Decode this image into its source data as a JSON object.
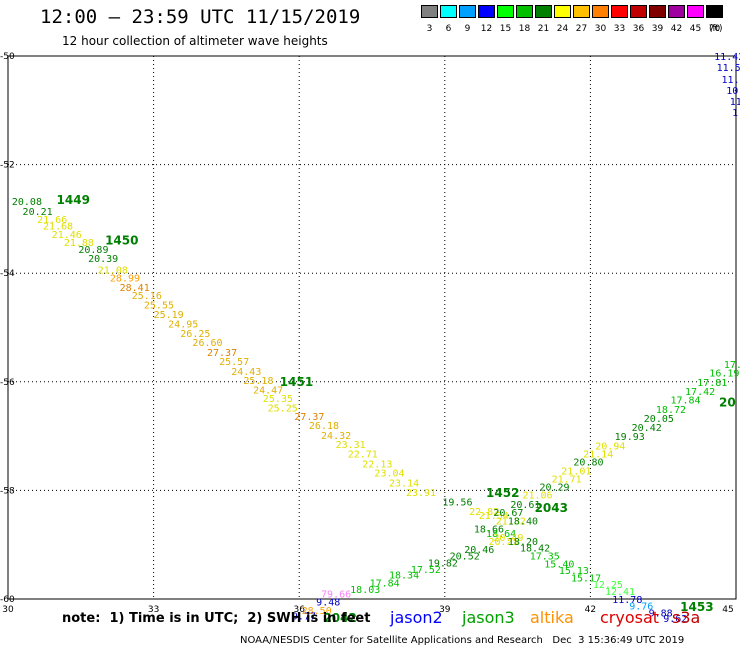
{
  "header": {
    "title": "12:00 – 23:59 UTC 11/15/2019",
    "subtitle": "12 hour collection of altimeter wave heights"
  },
  "legend": {
    "unit": "(ft)",
    "scale": [
      {
        "label": "3",
        "color": "#808080"
      },
      {
        "label": "6",
        "color": "#00ffff"
      },
      {
        "label": "9",
        "color": "#00a0ff"
      },
      {
        "label": "12",
        "color": "#0000ff"
      },
      {
        "label": "15",
        "color": "#00ff00"
      },
      {
        "label": "18",
        "color": "#00c000"
      },
      {
        "label": "21",
        "color": "#008000"
      },
      {
        "label": "24",
        "color": "#ffff00"
      },
      {
        "label": "27",
        "color": "#ffc000"
      },
      {
        "label": "30",
        "color": "#ff8000"
      },
      {
        "label": "33",
        "color": "#ff0000"
      },
      {
        "label": "36",
        "color": "#c00000"
      },
      {
        "label": "39",
        "color": "#800000"
      },
      {
        "label": "42",
        "color": "#a000a0"
      },
      {
        "label": "45",
        "color": "#ff00ff"
      },
      {
        "label": "70",
        "color": "#000000"
      }
    ]
  },
  "map": {
    "y_ticks": [
      "-50",
      "-52",
      "-54",
      "-56",
      "-58",
      "-60"
    ],
    "x_ticks": [
      "30",
      "33",
      "36",
      "39",
      "42",
      "45"
    ],
    "tracks": [
      {
        "color_key": "jason3",
        "points": [
          {
            "lon": 30.08,
            "lat": -52.67,
            "v": "20.08",
            "c": "#008000"
          },
          {
            "lon": 30.3,
            "lat": -52.8,
            "v": "20.21",
            "c": "#008000"
          },
          {
            "lon": 31.4,
            "lat": -53.45,
            "v": "20.89",
            "c": "#008000"
          },
          {
            "lon": 31.6,
            "lat": -53.62,
            "v": "20.39",
            "c": "#008000"
          },
          {
            "lon": 30.6,
            "lat": -52.95,
            "v": "21.66",
            "c": "#00c000"
          },
          {
            "lon": 30.7,
            "lat": -53.05,
            "v": "21.68",
            "c": "#00c000"
          },
          {
            "lon": 30.9,
            "lat": -53.25,
            "v": "21.46",
            "c": "#00c000"
          },
          {
            "lon": 31.1,
            "lat": -53.38,
            "v": "21.88",
            "c": "#00c000"
          }
        ]
      }
    ],
    "labels": [
      {
        "lon": 30.08,
        "lat": -52.67,
        "text": "20.08",
        "color": "#008000"
      },
      {
        "lon": 30.3,
        "lat": -52.85,
        "text": "20.21",
        "color": "#008000"
      },
      {
        "lon": 30.6,
        "lat": -53.0,
        "text": "21.66",
        "color": "#e0e000"
      },
      {
        "lon": 30.72,
        "lat": -53.12,
        "text": "21.68",
        "color": "#e0e000"
      },
      {
        "lon": 30.9,
        "lat": -53.28,
        "text": "21.46",
        "color": "#e0e000"
      },
      {
        "lon": 31.15,
        "lat": -53.43,
        "text": "21.88",
        "color": "#e0e000"
      },
      {
        "lon": 31.45,
        "lat": -53.55,
        "text": "20.89",
        "color": "#008000"
      },
      {
        "lon": 31.65,
        "lat": -53.72,
        "text": "20.39",
        "color": "#008000"
      },
      {
        "lon": 31.85,
        "lat": -53.93,
        "text": "21.08",
        "color": "#e0e000"
      },
      {
        "lon": 32.1,
        "lat": -54.08,
        "text": "28.99",
        "color": "#ffa000"
      },
      {
        "lon": 32.3,
        "lat": -54.25,
        "text": "28.41",
        "color": "#e08000"
      },
      {
        "lon": 32.55,
        "lat": -54.4,
        "text": "25.16",
        "color": "#e0b000"
      },
      {
        "lon": 32.8,
        "lat": -54.58,
        "text": "25.55",
        "color": "#e0b000"
      },
      {
        "lon": 33.0,
        "lat": -54.75,
        "text": "25.19",
        "color": "#e0b000"
      },
      {
        "lon": 33.3,
        "lat": -54.93,
        "text": "24.95",
        "color": "#e0b000"
      },
      {
        "lon": 33.55,
        "lat": -55.1,
        "text": "26.25",
        "color": "#e0b000"
      },
      {
        "lon": 33.8,
        "lat": -55.27,
        "text": "26.60",
        "color": "#e0b000"
      },
      {
        "lon": 34.1,
        "lat": -55.45,
        "text": "27.37",
        "color": "#e08000"
      },
      {
        "lon": 34.35,
        "lat": -55.62,
        "text": "25.57",
        "color": "#e0b000"
      },
      {
        "lon": 34.6,
        "lat": -55.8,
        "text": "24.43",
        "color": "#e0b000"
      },
      {
        "lon": 34.85,
        "lat": -55.97,
        "text": "25.18",
        "color": "#e0b000"
      },
      {
        "lon": 35.05,
        "lat": -56.14,
        "text": "24.47",
        "color": "#e0b000"
      },
      {
        "lon": 35.25,
        "lat": -56.3,
        "text": "25.35",
        "color": "#e0e000"
      },
      {
        "lon": 35.35,
        "lat": -56.47,
        "text": "25.25",
        "color": "#e0e000"
      },
      {
        "lon": 35.9,
        "lat": -56.63,
        "text": "27.37",
        "color": "#e08000"
      },
      {
        "lon": 36.2,
        "lat": -56.8,
        "text": "26.18",
        "color": "#e0b000"
      },
      {
        "lon": 36.45,
        "lat": -56.98,
        "text": "24.32",
        "color": "#e0b000"
      },
      {
        "lon": 36.75,
        "lat": -57.15,
        "text": "23.31",
        "color": "#e0e000"
      },
      {
        "lon": 37.0,
        "lat": -57.32,
        "text": "22.71",
        "color": "#e0e000"
      },
      {
        "lon": 37.3,
        "lat": -57.5,
        "text": "22.13",
        "color": "#e0e000"
      },
      {
        "lon": 37.55,
        "lat": -57.67,
        "text": "23.04",
        "color": "#e0e000"
      },
      {
        "lon": 37.85,
        "lat": -57.85,
        "text": "23.14",
        "color": "#e0e000"
      },
      {
        "lon": 38.2,
        "lat": -58.03,
        "text": "23.91",
        "color": "#e0e000"
      },
      {
        "lon": 38.95,
        "lat": -58.2,
        "text": "19.56",
        "color": "#008000"
      },
      {
        "lon": 39.5,
        "lat": -58.38,
        "text": "22.82",
        "color": "#e0e000"
      },
      {
        "lon": 39.7,
        "lat": -58.45,
        "text": "21.34",
        "color": "#e0e000"
      },
      {
        "lon": 40.05,
        "lat": -58.55,
        "text": "21.32",
        "color": "#e0e000"
      },
      {
        "lon": 39.6,
        "lat": -58.7,
        "text": "18.66",
        "color": "#008000"
      },
      {
        "lon": 40.3,
        "lat": -58.55,
        "text": "18.40",
        "color": "#008000"
      },
      {
        "lon": 39.85,
        "lat": -58.78,
        "text": "18.64",
        "color": "#00c000"
      },
      {
        "lon": 40.0,
        "lat": -58.86,
        "text": "20.49",
        "color": "#e0e000"
      },
      {
        "lon": 39.9,
        "lat": -58.93,
        "text": "20.25",
        "color": "#e0e000"
      },
      {
        "lon": 40.3,
        "lat": -58.93,
        "text": "18.20",
        "color": "#008000"
      },
      {
        "lon": 40.55,
        "lat": -59.05,
        "text": "18.42",
        "color": "#008000"
      },
      {
        "lon": 39.4,
        "lat": -59.08,
        "text": "20.46",
        "color": "#008000"
      },
      {
        "lon": 39.1,
        "lat": -59.2,
        "text": "20.52",
        "color": "#008000"
      },
      {
        "lon": 38.65,
        "lat": -59.33,
        "text": "19.82",
        "color": "#008000"
      },
      {
        "lon": 38.3,
        "lat": -59.45,
        "text": "17.52",
        "color": "#00c000"
      },
      {
        "lon": 37.85,
        "lat": -59.55,
        "text": "18.34",
        "color": "#00c000"
      },
      {
        "lon": 37.45,
        "lat": -59.7,
        "text": "17.84",
        "color": "#00c000"
      },
      {
        "lon": 37.05,
        "lat": -59.82,
        "text": "18.03",
        "color": "#00c000"
      },
      {
        "lon": 36.45,
        "lat": -59.9,
        "text": "79.66",
        "color": "#ff80ff"
      },
      {
        "lon": 36.35,
        "lat": -60.05,
        "text": "9.48",
        "color": "#0000c0"
      },
      {
        "lon": 36.05,
        "lat": -60.2,
        "text": "28.50",
        "color": "#ffa000"
      },
      {
        "lon": 35.85,
        "lat": -60.3,
        "text": "9.77",
        "color": "#0000c0"
      },
      {
        "lon": 40.75,
        "lat": -59.2,
        "text": "17.35",
        "color": "#00c000"
      },
      {
        "lon": 41.05,
        "lat": -59.35,
        "text": "15.40",
        "color": "#00c000"
      },
      {
        "lon": 41.35,
        "lat": -59.47,
        "text": "15.13",
        "color": "#00c000"
      },
      {
        "lon": 41.6,
        "lat": -59.6,
        "text": "15.17",
        "color": "#00c000"
      },
      {
        "lon": 42.05,
        "lat": -59.72,
        "text": "12.25",
        "color": "#40ff40"
      },
      {
        "lon": 42.3,
        "lat": -59.85,
        "text": "12.41",
        "color": "#40ff40"
      },
      {
        "lon": 42.45,
        "lat": -60.0,
        "text": "11.78",
        "color": "#0000c0"
      },
      {
        "lon": 42.8,
        "lat": -60.12,
        "text": "9.76",
        "color": "#00a0ff"
      },
      {
        "lon": 43.2,
        "lat": -60.25,
        "text": "9.88",
        "color": "#0000c0"
      },
      {
        "lon": 43.5,
        "lat": -60.35,
        "text": "9.62",
        "color": "#0000c0"
      },
      {
        "lon": 40.0,
        "lat": -58.4,
        "text": "20.67",
        "color": "#008000"
      },
      {
        "lon": 40.35,
        "lat": -58.25,
        "text": "20.61",
        "color": "#008000"
      },
      {
        "lon": 40.6,
        "lat": -58.08,
        "text": "21.06",
        "color": "#e0e000"
      },
      {
        "lon": 40.95,
        "lat": -57.93,
        "text": "20.29",
        "color": "#008000"
      },
      {
        "lon": 41.2,
        "lat": -57.78,
        "text": "21.71",
        "color": "#e0e000"
      },
      {
        "lon": 41.4,
        "lat": -57.63,
        "text": "21.01",
        "color": "#e0e000"
      },
      {
        "lon": 41.65,
        "lat": -57.47,
        "text": "20.80",
        "color": "#008000"
      },
      {
        "lon": 41.85,
        "lat": -57.32,
        "text": "21.14",
        "color": "#e0e000"
      },
      {
        "lon": 42.1,
        "lat": -57.17,
        "text": "20.94",
        "color": "#e0e000"
      },
      {
        "lon": 42.5,
        "lat": -57.0,
        "text": "19.93",
        "color": "#008000"
      },
      {
        "lon": 42.85,
        "lat": -56.83,
        "text": "20.42",
        "color": "#008000"
      },
      {
        "lon": 43.1,
        "lat": -56.67,
        "text": "20.05",
        "color": "#008000"
      },
      {
        "lon": 43.35,
        "lat": -56.5,
        "text": "18.72",
        "color": "#00c000"
      },
      {
        "lon": 43.65,
        "lat": -56.33,
        "text": "17.84",
        "color": "#00c000"
      },
      {
        "lon": 43.95,
        "lat": -56.17,
        "text": "17.42",
        "color": "#00c000"
      },
      {
        "lon": 44.2,
        "lat": -56.0,
        "text": "17.81",
        "color": "#00c000"
      },
      {
        "lon": 44.45,
        "lat": -55.83,
        "text": "16.19",
        "color": "#00c000"
      },
      {
        "lon": 44.75,
        "lat": -55.67,
        "text": "17.2",
        "color": "#00c000"
      },
      {
        "lon": 44.55,
        "lat": -50.0,
        "text": "11.42",
        "color": "#0000c0"
      },
      {
        "lon": 44.6,
        "lat": -50.2,
        "text": "11.53",
        "color": "#0000c0"
      },
      {
        "lon": 44.7,
        "lat": -50.42,
        "text": "11.5",
        "color": "#0000c0"
      },
      {
        "lon": 44.8,
        "lat": -50.63,
        "text": "10.4",
        "color": "#0000c0"
      },
      {
        "lon": 44.87,
        "lat": -50.83,
        "text": "11",
        "color": "#0000c0"
      },
      {
        "lon": 44.92,
        "lat": -51.03,
        "text": "1",
        "color": "#0000c0"
      }
    ],
    "pass_labels": [
      {
        "lon": 31.0,
        "lat": -52.65,
        "text": "1449",
        "color": "#008000"
      },
      {
        "lon": 32.0,
        "lat": -53.4,
        "text": "1450",
        "color": "#008000"
      },
      {
        "lon": 35.6,
        "lat": -56.0,
        "text": "1451",
        "color": "#008000"
      },
      {
        "lon": 39.85,
        "lat": -58.05,
        "text": "1452",
        "color": "#008000"
      },
      {
        "lon": 40.85,
        "lat": -58.32,
        "text": "2043",
        "color": "#008000"
      },
      {
        "lon": 43.85,
        "lat": -60.15,
        "text": "1453",
        "color": "#008000"
      },
      {
        "lon": 36.5,
        "lat": -60.35,
        "text": "2042",
        "color": "#008000"
      },
      {
        "lon": 44.65,
        "lat": -56.38,
        "text": "20",
        "color": "#008000"
      }
    ]
  },
  "footer": {
    "note": "note:  1) Time is in UTC;  2) SWH is in feet",
    "satellites": [
      {
        "name": "jason2",
        "color": "#0000ff"
      },
      {
        "name": "jason3",
        "color": "#00a000"
      },
      {
        "name": "altika",
        "color": "#ff9000"
      },
      {
        "name": "cryosat",
        "color": "#e00000"
      },
      {
        "name": "s3a",
        "color": "#c00000"
      }
    ],
    "credit": "NOAA/NESDIS Center for Satellite Applications and Research   Dec  3 15:36:49 UTC 2019"
  }
}
